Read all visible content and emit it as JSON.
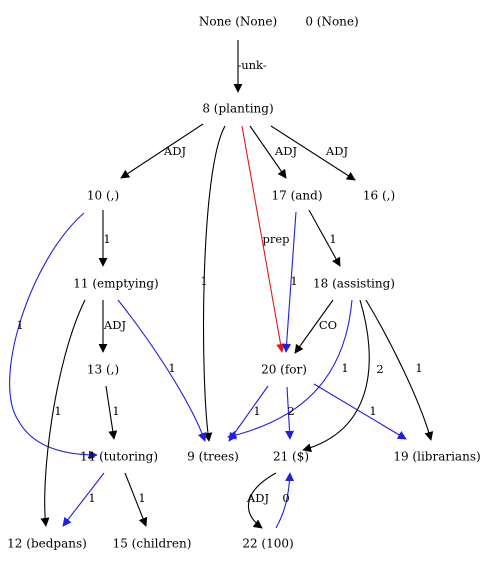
{
  "graph": {
    "colors": {
      "black": "#000000",
      "red": "#e01b1b",
      "blue": "#1f1fe0"
    },
    "nodes": [
      {
        "id": "none",
        "label": "None (None)"
      },
      {
        "id": "n0",
        "label": "0 (None)"
      },
      {
        "id": "n8",
        "label": "8 (planting)"
      },
      {
        "id": "n10",
        "label": "10 (,)"
      },
      {
        "id": "n17",
        "label": "17 (and)"
      },
      {
        "id": "n16",
        "label": "16 (,)"
      },
      {
        "id": "n11",
        "label": "11 (emptying)"
      },
      {
        "id": "n18",
        "label": "18 (assisting)"
      },
      {
        "id": "n13",
        "label": "13 (,)"
      },
      {
        "id": "n20",
        "label": "20 (for)"
      },
      {
        "id": "n14",
        "label": "14 (tutoring)"
      },
      {
        "id": "n9",
        "label": "9 (trees)"
      },
      {
        "id": "n21",
        "label": "21 ($)"
      },
      {
        "id": "n19",
        "label": "19 (librarians)"
      },
      {
        "id": "n12",
        "label": "12 (bedpans)"
      },
      {
        "id": "n15",
        "label": "15 (children)"
      },
      {
        "id": "n22",
        "label": "22 (100)"
      }
    ],
    "edges": [
      {
        "id": "e-none-8",
        "from": "none",
        "to": "n8",
        "label": "-unk-",
        "color": "black"
      },
      {
        "id": "e-8-10",
        "from": "n8",
        "to": "n10",
        "label": "ADJ",
        "color": "black"
      },
      {
        "id": "e-8-9",
        "from": "n8",
        "to": "n9",
        "label": "1",
        "color": "black"
      },
      {
        "id": "e-8-20",
        "from": "n8",
        "to": "n20",
        "label": "prep",
        "color": "red"
      },
      {
        "id": "e-8-17",
        "from": "n8",
        "to": "n17",
        "label": "ADJ",
        "color": "black"
      },
      {
        "id": "e-8-16",
        "from": "n8",
        "to": "n16",
        "label": "ADJ",
        "color": "black"
      },
      {
        "id": "e-10-11",
        "from": "n10",
        "to": "n11",
        "label": "1",
        "color": "black"
      },
      {
        "id": "e-10-14",
        "from": "n10",
        "to": "n14",
        "label": "1",
        "color": "blue"
      },
      {
        "id": "e-17-18",
        "from": "n17",
        "to": "n18",
        "label": "1",
        "color": "black"
      },
      {
        "id": "e-17-20",
        "from": "n17",
        "to": "n20",
        "label": "1",
        "color": "blue"
      },
      {
        "id": "e-11-13",
        "from": "n11",
        "to": "n13",
        "label": "ADJ",
        "color": "black"
      },
      {
        "id": "e-11-12",
        "from": "n11",
        "to": "n12",
        "label": "1",
        "color": "black"
      },
      {
        "id": "e-11-9",
        "from": "n11",
        "to": "n9",
        "label": "1",
        "color": "blue"
      },
      {
        "id": "e-18-20",
        "from": "n18",
        "to": "n20",
        "label": "CO",
        "color": "black"
      },
      {
        "id": "e-18-9",
        "from": "n18",
        "to": "n9",
        "label": "1",
        "color": "blue"
      },
      {
        "id": "e-18-21",
        "from": "n18",
        "to": "n21",
        "label": "2",
        "color": "black"
      },
      {
        "id": "e-18-19",
        "from": "n18",
        "to": "n19",
        "label": "1",
        "color": "black"
      },
      {
        "id": "e-13-14",
        "from": "n13",
        "to": "n14",
        "label": "1",
        "color": "black"
      },
      {
        "id": "e-20-9",
        "from": "n20",
        "to": "n9",
        "label": "1",
        "color": "blue"
      },
      {
        "id": "e-20-21",
        "from": "n20",
        "to": "n21",
        "label": "2",
        "color": "blue"
      },
      {
        "id": "e-20-19",
        "from": "n20",
        "to": "n19",
        "label": "1",
        "color": "blue"
      },
      {
        "id": "e-14-12",
        "from": "n14",
        "to": "n12",
        "label": "1",
        "color": "blue"
      },
      {
        "id": "e-14-15",
        "from": "n14",
        "to": "n15",
        "label": "1",
        "color": "black"
      },
      {
        "id": "e-21-22",
        "from": "n21",
        "to": "n22",
        "label": "ADJ",
        "color": "black"
      },
      {
        "id": "e-22-21",
        "from": "n22",
        "to": "n21",
        "label": "0",
        "color": "blue"
      }
    ]
  }
}
